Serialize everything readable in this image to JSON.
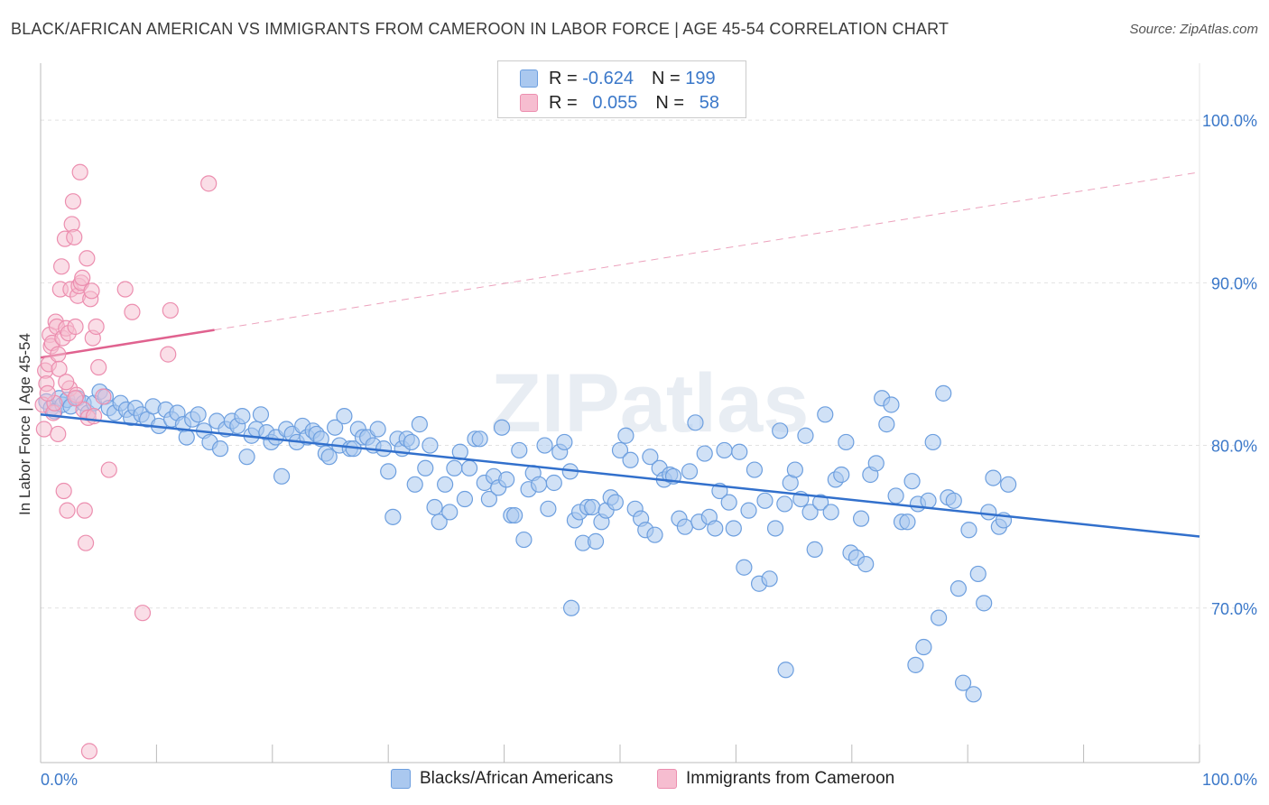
{
  "title": "BLACK/AFRICAN AMERICAN VS IMMIGRANTS FROM CAMEROON IN LABOR FORCE | AGE 45-54 CORRELATION CHART",
  "source": "Source: ZipAtlas.com",
  "watermark": "ZIPatlas",
  "legend": {
    "series1": {
      "r_label": "R =",
      "r_value": "-0.624",
      "n_label": "N =",
      "n_value": "199"
    },
    "series2": {
      "r_label": "R =",
      "r_value": "0.055",
      "n_label": "N =",
      "n_value": "58"
    }
  },
  "bottom_legend": {
    "series1": "Blacks/African Americans",
    "series2": "Immigrants from Cameroon"
  },
  "colors": {
    "blue_fill": "#aac8ef",
    "blue_stroke": "#6d9fdf",
    "blue_line": "#3270cc",
    "pink_fill": "#f6bdd0",
    "pink_stroke": "#ec8eaf",
    "pink_line": "#e0628f",
    "tick_label": "#3b78c9",
    "grid": "#e2e2e2"
  },
  "chart_data": {
    "type": "scatter",
    "title": "BLACK/AFRICAN AMERICAN VS IMMIGRANTS FROM CAMEROON IN LABOR FORCE | AGE 45-54 CORRELATION CHART",
    "xlabel": "",
    "ylabel": "In Labor Force | Age 45-54",
    "xlim": [
      0,
      100
    ],
    "ylim": [
      60.5,
      103.5
    ],
    "x_ticks": [
      "0.0%",
      "100.0%"
    ],
    "y_ticks": [
      {
        "value": 100,
        "label": "100.0%"
      },
      {
        "value": 90,
        "label": "90.0%"
      },
      {
        "value": 80,
        "label": "80.0%"
      },
      {
        "value": 70,
        "label": "70.0%"
      }
    ],
    "grid": true,
    "legend_position": "top-center",
    "series": [
      {
        "name": "Blacks/African Americans",
        "r": -0.624,
        "n": 199,
        "trend": {
          "x": [
            0,
            100
          ],
          "y": [
            81.9,
            74.4
          ],
          "style": "solid"
        },
        "points": [
          [
            0.5,
            82.7
          ],
          [
            0.9,
            82.3
          ],
          [
            1.2,
            82.1
          ],
          [
            1.6,
            82.9
          ],
          [
            1.9,
            82.5
          ],
          [
            2.3,
            82.8
          ],
          [
            2.6,
            82.4
          ],
          [
            3.2,
            82.9
          ],
          [
            3.7,
            82.6
          ],
          [
            4.1,
            82.0
          ],
          [
            4.6,
            82.6
          ],
          [
            5.1,
            83.3
          ],
          [
            5.6,
            83.0
          ],
          [
            5.9,
            82.3
          ],
          [
            6.4,
            82.0
          ],
          [
            6.9,
            82.6
          ],
          [
            7.4,
            82.2
          ],
          [
            7.8,
            81.7
          ],
          [
            8.2,
            82.3
          ],
          [
            8.7,
            81.9
          ],
          [
            9.2,
            81.6
          ],
          [
            9.7,
            82.4
          ],
          [
            10.2,
            81.2
          ],
          [
            10.8,
            82.2
          ],
          [
            11.3,
            81.6
          ],
          [
            11.8,
            82.0
          ],
          [
            12.3,
            81.3
          ],
          [
            12.6,
            80.5
          ],
          [
            13.1,
            81.6
          ],
          [
            13.6,
            81.9
          ],
          [
            14.1,
            80.9
          ],
          [
            14.6,
            80.2
          ],
          [
            15.2,
            81.5
          ],
          [
            15.5,
            79.8
          ],
          [
            16.0,
            81.0
          ],
          [
            16.5,
            81.5
          ],
          [
            17.0,
            81.2
          ],
          [
            17.4,
            81.8
          ],
          [
            17.8,
            79.3
          ],
          [
            18.2,
            80.6
          ],
          [
            18.6,
            81.0
          ],
          [
            19.0,
            81.9
          ],
          [
            19.5,
            80.8
          ],
          [
            19.9,
            80.2
          ],
          [
            20.3,
            80.5
          ],
          [
            20.8,
            78.1
          ],
          [
            21.2,
            81.0
          ],
          [
            21.7,
            80.7
          ],
          [
            22.1,
            80.2
          ],
          [
            22.6,
            81.2
          ],
          [
            23.0,
            80.5
          ],
          [
            23.5,
            80.9
          ],
          [
            23.8,
            80.7
          ],
          [
            24.2,
            80.4
          ],
          [
            24.6,
            79.5
          ],
          [
            24.9,
            79.3
          ],
          [
            25.4,
            81.1
          ],
          [
            25.8,
            80.0
          ],
          [
            26.2,
            81.8
          ],
          [
            26.7,
            79.8
          ],
          [
            27.0,
            79.8
          ],
          [
            27.4,
            81.0
          ],
          [
            27.8,
            80.5
          ],
          [
            28.2,
            80.5
          ],
          [
            28.7,
            80.0
          ],
          [
            29.1,
            81.0
          ],
          [
            29.6,
            79.8
          ],
          [
            30.0,
            78.4
          ],
          [
            30.4,
            75.6
          ],
          [
            30.8,
            80.4
          ],
          [
            31.2,
            79.8
          ],
          [
            31.6,
            80.4
          ],
          [
            32.0,
            80.2
          ],
          [
            32.3,
            77.6
          ],
          [
            32.7,
            81.3
          ],
          [
            33.2,
            78.6
          ],
          [
            33.6,
            80.0
          ],
          [
            34.0,
            76.2
          ],
          [
            34.4,
            75.3
          ],
          [
            34.9,
            77.6
          ],
          [
            35.3,
            75.9
          ],
          [
            35.7,
            78.6
          ],
          [
            36.2,
            79.6
          ],
          [
            36.6,
            76.7
          ],
          [
            37.0,
            78.6
          ],
          [
            37.5,
            80.4
          ],
          [
            37.9,
            80.4
          ],
          [
            38.3,
            77.7
          ],
          [
            38.7,
            76.7
          ],
          [
            39.1,
            78.1
          ],
          [
            39.5,
            77.4
          ],
          [
            39.8,
            81.1
          ],
          [
            40.2,
            77.9
          ],
          [
            40.6,
            75.7
          ],
          [
            40.9,
            75.7
          ],
          [
            41.3,
            79.7
          ],
          [
            41.7,
            74.2
          ],
          [
            42.1,
            77.3
          ],
          [
            42.5,
            78.3
          ],
          [
            43.0,
            77.6
          ],
          [
            43.5,
            80.0
          ],
          [
            43.8,
            76.1
          ],
          [
            44.3,
            77.7
          ],
          [
            44.8,
            79.6
          ],
          [
            45.2,
            80.2
          ],
          [
            45.7,
            78.4
          ],
          [
            46.1,
            75.4
          ],
          [
            46.5,
            75.9
          ],
          [
            46.8,
            74.0
          ],
          [
            47.2,
            76.2
          ],
          [
            47.6,
            76.2
          ],
          [
            47.9,
            74.1
          ],
          [
            48.4,
            75.3
          ],
          [
            48.8,
            76.0
          ],
          [
            49.2,
            76.8
          ],
          [
            49.6,
            76.5
          ],
          [
            50.0,
            79.7
          ],
          [
            50.5,
            80.6
          ],
          [
            50.9,
            79.1
          ],
          [
            51.3,
            76.1
          ],
          [
            51.8,
            75.5
          ],
          [
            52.2,
            74.8
          ],
          [
            52.6,
            79.3
          ],
          [
            53.0,
            74.5
          ],
          [
            53.4,
            78.6
          ],
          [
            53.8,
            77.9
          ],
          [
            54.3,
            78.2
          ],
          [
            54.6,
            78.1
          ],
          [
            55.1,
            75.5
          ],
          [
            55.6,
            75.0
          ],
          [
            56.0,
            78.4
          ],
          [
            56.5,
            81.4
          ],
          [
            56.8,
            75.3
          ],
          [
            57.3,
            79.5
          ],
          [
            57.7,
            75.6
          ],
          [
            58.2,
            74.9
          ],
          [
            58.6,
            77.2
          ],
          [
            59.0,
            79.7
          ],
          [
            59.4,
            76.5
          ],
          [
            59.8,
            74.9
          ],
          [
            60.3,
            79.6
          ],
          [
            60.7,
            72.5
          ],
          [
            61.1,
            76.0
          ],
          [
            61.6,
            78.5
          ],
          [
            62.0,
            71.5
          ],
          [
            62.5,
            76.6
          ],
          [
            62.9,
            71.8
          ],
          [
            63.4,
            74.9
          ],
          [
            63.8,
            80.9
          ],
          [
            64.2,
            76.4
          ],
          [
            64.7,
            77.7
          ],
          [
            65.1,
            78.5
          ],
          [
            65.6,
            76.7
          ],
          [
            66.0,
            80.6
          ],
          [
            66.4,
            75.9
          ],
          [
            66.8,
            73.6
          ],
          [
            67.3,
            76.5
          ],
          [
            67.7,
            81.9
          ],
          [
            68.2,
            75.9
          ],
          [
            68.6,
            77.9
          ],
          [
            69.1,
            78.2
          ],
          [
            69.5,
            80.2
          ],
          [
            69.9,
            73.4
          ],
          [
            70.4,
            73.1
          ],
          [
            70.8,
            75.5
          ],
          [
            71.2,
            72.7
          ],
          [
            71.6,
            78.2
          ],
          [
            72.1,
            78.9
          ],
          [
            72.6,
            82.9
          ],
          [
            73.0,
            81.3
          ],
          [
            73.4,
            82.5
          ],
          [
            73.8,
            76.9
          ],
          [
            74.3,
            75.3
          ],
          [
            74.8,
            75.3
          ],
          [
            75.2,
            77.8
          ],
          [
            75.7,
            76.4
          ],
          [
            76.2,
            67.6
          ],
          [
            76.6,
            76.6
          ],
          [
            77.0,
            80.2
          ],
          [
            77.5,
            69.4
          ],
          [
            77.9,
            83.2
          ],
          [
            78.3,
            76.8
          ],
          [
            78.8,
            76.6
          ],
          [
            79.2,
            71.2
          ],
          [
            79.6,
            65.4
          ],
          [
            80.1,
            74.8
          ],
          [
            80.5,
            64.7
          ],
          [
            80.9,
            72.1
          ],
          [
            81.4,
            70.3
          ],
          [
            81.8,
            75.9
          ],
          [
            82.2,
            78.0
          ],
          [
            82.7,
            75.0
          ],
          [
            83.1,
            75.4
          ],
          [
            83.5,
            77.6
          ],
          [
            75.5,
            66.5
          ],
          [
            64.3,
            66.2
          ],
          [
            45.8,
            70.0
          ]
        ]
      },
      {
        "name": "Immigrants from Cameroon",
        "r": 0.055,
        "n": 58,
        "trend": {
          "x": [
            0,
            15
          ],
          "y": [
            85.4,
            87.1
          ],
          "style": "solid",
          "extended_to": [
            100,
            96.8
          ],
          "extended_style": "dashed"
        },
        "points": [
          [
            0.2,
            82.5
          ],
          [
            0.4,
            84.6
          ],
          [
            0.5,
            83.8
          ],
          [
            0.7,
            85.0
          ],
          [
            0.8,
            86.8
          ],
          [
            0.9,
            86.1
          ],
          [
            1.0,
            86.3
          ],
          [
            1.1,
            82.0
          ],
          [
            1.2,
            82.6
          ],
          [
            1.3,
            87.6
          ],
          [
            1.4,
            87.3
          ],
          [
            1.5,
            85.6
          ],
          [
            1.6,
            84.7
          ],
          [
            1.7,
            89.6
          ],
          [
            1.8,
            91.0
          ],
          [
            1.9,
            86.6
          ],
          [
            2.0,
            77.2
          ],
          [
            2.1,
            92.7
          ],
          [
            2.2,
            87.2
          ],
          [
            2.3,
            76.0
          ],
          [
            2.4,
            86.9
          ],
          [
            2.5,
            83.5
          ],
          [
            2.6,
            89.6
          ],
          [
            2.7,
            93.6
          ],
          [
            2.8,
            95.0
          ],
          [
            2.9,
            92.8
          ],
          [
            3.0,
            87.3
          ],
          [
            3.1,
            83.1
          ],
          [
            3.2,
            89.2
          ],
          [
            3.3,
            89.8
          ],
          [
            3.4,
            96.8
          ],
          [
            3.5,
            90.0
          ],
          [
            3.6,
            90.3
          ],
          [
            3.7,
            82.2
          ],
          [
            3.8,
            76.0
          ],
          [
            3.9,
            74.0
          ],
          [
            4.0,
            91.5
          ],
          [
            4.1,
            81.7
          ],
          [
            4.2,
            61.2
          ],
          [
            4.3,
            89.0
          ],
          [
            4.4,
            89.5
          ],
          [
            4.5,
            86.6
          ],
          [
            4.6,
            81.8
          ],
          [
            4.8,
            87.3
          ],
          [
            5.0,
            84.8
          ],
          [
            5.4,
            83.0
          ],
          [
            5.9,
            78.5
          ],
          [
            7.3,
            89.6
          ],
          [
            7.9,
            88.2
          ],
          [
            8.8,
            69.7
          ],
          [
            11.0,
            85.6
          ],
          [
            11.2,
            88.3
          ],
          [
            14.5,
            96.1
          ],
          [
            0.3,
            81.0
          ],
          [
            0.6,
            83.2
          ],
          [
            1.5,
            80.7
          ],
          [
            2.2,
            83.9
          ],
          [
            3.0,
            82.9
          ]
        ]
      }
    ]
  }
}
